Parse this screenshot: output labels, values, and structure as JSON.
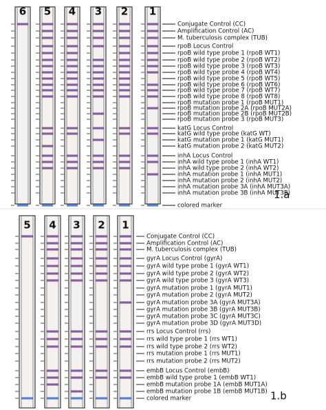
{
  "panels": [
    {
      "panel_label": "1.a",
      "strip_numbers": [
        "6",
        "5",
        "4",
        "3",
        "2",
        "1"
      ],
      "labels": [
        "Conjugate Control (CC)",
        "Amplification Control (AC)",
        "M. tuberculosis complex (TUB)",
        "rpoB Locus Control",
        "rpoB wild type probe 1 (rpoB WT1)",
        "rpoB wild type probe 2 (rpoB WT2)",
        "rpoB wild type probe 3 (rpoB WT3)",
        "rpoB wild type probe 4 (rpoB WT4)",
        "rpoB wild type probe 5 (rpoB WT5)",
        "rpoB wild type probe 6 (rpoB WT6)",
        "rpoB wild type probe 7 (rpoB WT7)",
        "rpoB wild type probe 8 (rpoB WT8)",
        "rpoB mutation probe 1 (rpoB MUT1)",
        "rpoB mutation probe 2A (rpoB MUT2A)",
        "rpoB mutation probe 2B (rpoB MUT2B)",
        "rpoB mutation probe 3 (rpoB MUT3)",
        "katG Locus Control",
        "katG wild type probe (katG WT)",
        "katG mutation probe 1 (katG MUT1)",
        "katG mutation probe 2 (katG MUT2)",
        "inhA Locus Control",
        "inhA wild type probe 1 (inhA WT1)",
        "inhA wild type probe 2 (inhA WT2)",
        "inhA mutation probe 1 (inhA MUT1)",
        "inhA mutation probe 2 (inhA MUT2)",
        "inhA mutation probe 3A (inhA MUT3A)",
        "inhA mutation probe 3B (inhA MUT3B)",
        "colored marker"
      ]
    },
    {
      "panel_label": "1.b",
      "strip_numbers": [
        "5",
        "4",
        "3",
        "2",
        "1"
      ],
      "labels": [
        "Conjugate Control (CC)",
        "Amplification Control (AC)",
        "M. tuberculosis complex (TUB)",
        "gyrA Locus Control (gyrA)",
        "gyrA wild type probe 1 (gyrA WT1)",
        "gyrA wild type probe 2 (gyrA WT2)",
        "gyrA wild type probe 3 (gyrA WT3)",
        "gyrA mutation probe 1 (gyrA MUT1)",
        "gyrA mutation probe 2 (gyrA MUT2)",
        "gyrA mutation probe 3A (gyrA MUT3A)",
        "gyrA mutation probe 3B (gyrA MUT3B)",
        "gyrA mutation probe 3C (gyrA MUT3C)",
        "gyrA mutation probe 3D (gyrA MUT3D)",
        "rrs Locus Control (rrs)",
        "rrs wild type probe 1 (rrs WT1)",
        "rrs wild type probe 2 (rrs WT2)",
        "rrs mutation probe 1 (rrs MUT1)",
        "rrs mutation probe 2 (rrs MUT2)",
        "embB Locus Control (embB)",
        "embB wild type probe 1 (embB WT1)",
        "embB mutation probe 1A (embB MUT1A)",
        "embB mutation probe 1B (embB MUT1B)",
        "colored marker"
      ]
    }
  ]
}
